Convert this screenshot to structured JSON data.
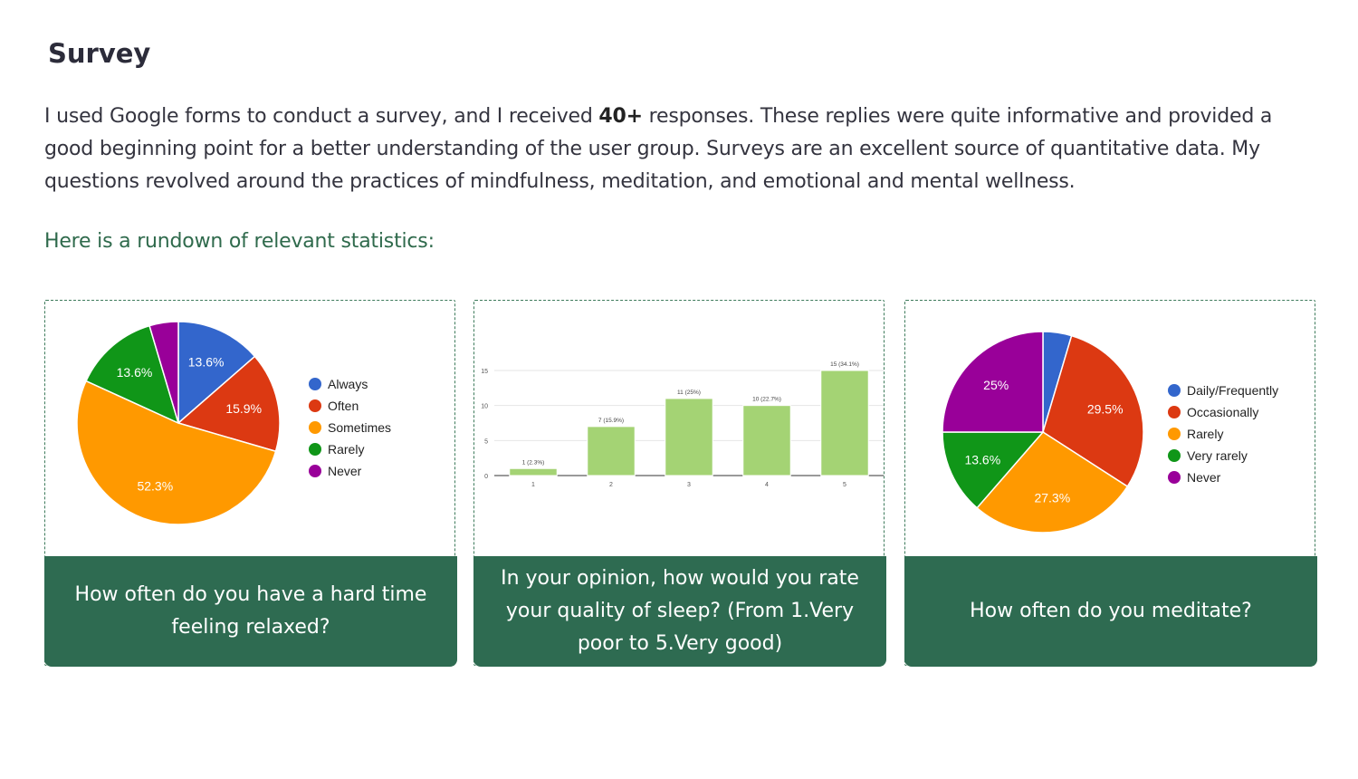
{
  "page": {
    "title": "Survey",
    "intro_before": "I used Google forms to conduct a survey, and I received ",
    "intro_bold": "40+",
    "intro_after": " responses. These replies were quite informative and provided a good beginning point for a better understanding of the user group. Surveys are an excellent source of quantitative data. My questions revolved around the practices of mindfulness, meditation, and emotional and mental wellness.",
    "subheading": "Here is a rundown of relevant statistics:"
  },
  "cards": [
    {
      "caption": "How often do you have a hard time feeling relaxed?"
    },
    {
      "caption": "In your opinion, how would you rate your quality of sleep? (From 1.Very poor to 5.Very good)"
    },
    {
      "caption": "How often do you meditate?"
    }
  ],
  "chart_data": [
    {
      "type": "pie",
      "title": "",
      "slices": [
        {
          "label": "Always",
          "value": 13.6,
          "text": "13.6%",
          "color": "#3366cc"
        },
        {
          "label": "Often",
          "value": 15.9,
          "text": "15.9%",
          "color": "#dc3912"
        },
        {
          "label": "Sometimes",
          "value": 52.3,
          "text": "52.3%",
          "color": "#ff9900"
        },
        {
          "label": "Rarely",
          "value": 13.6,
          "text": "13.6%",
          "color": "#109618"
        },
        {
          "label": "Never",
          "value": 4.6,
          "text": "",
          "color": "#990099"
        }
      ],
      "legend_position": "right"
    },
    {
      "type": "bar",
      "title": "",
      "categories": [
        "1",
        "2",
        "3",
        "4",
        "5"
      ],
      "values": [
        1,
        7,
        11,
        10,
        15
      ],
      "data_labels": [
        "1 (2.3%)",
        "7 (15.9%)",
        "11 (25%)",
        "10 (22.7%)",
        "15 (34.1%)"
      ],
      "yticks": [
        "0",
        "5",
        "10",
        "15"
      ],
      "ylim": [
        0,
        15
      ],
      "color": "#a4d374",
      "grid": true
    },
    {
      "type": "pie",
      "title": "",
      "slices": [
        {
          "label": "Daily/Frequently",
          "value": 4.6,
          "text": "",
          "color": "#3366cc"
        },
        {
          "label": "Occasionally",
          "value": 29.5,
          "text": "29.5%",
          "color": "#dc3912"
        },
        {
          "label": "Rarely",
          "value": 27.3,
          "text": "27.3%",
          "color": "#ff9900"
        },
        {
          "label": "Very rarely",
          "value": 13.6,
          "text": "13.6%",
          "color": "#109618"
        },
        {
          "label": "Never",
          "value": 25,
          "text": "25%",
          "color": "#990099"
        }
      ],
      "legend_position": "right"
    }
  ]
}
